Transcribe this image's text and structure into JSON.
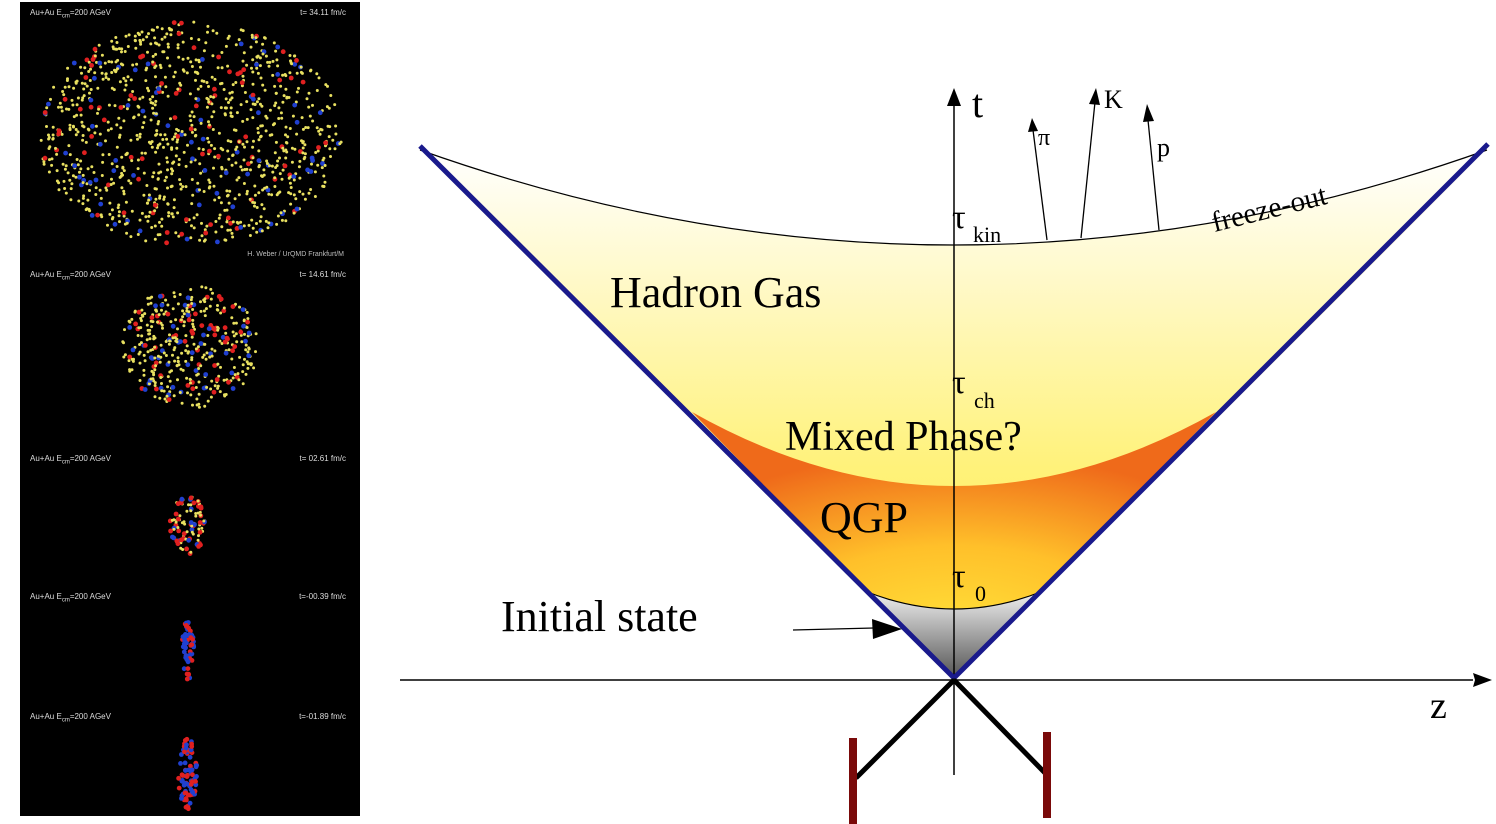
{
  "simulation": {
    "frames": [
      {
        "label": "Au+Au E",
        "sub": "cm",
        "label_rest": "=200 AGeV",
        "time": "t= 34.11 fm/c",
        "credit": "H. Weber / UrQMD Frankfurt/M"
      },
      {
        "label": "Au+Au E",
        "sub": "cm",
        "label_rest": "=200 AGeV",
        "time": "t= 14.61 fm/c",
        "credit": ""
      },
      {
        "label": "Au+Au E",
        "sub": "cm",
        "label_rest": "=200 AGeV",
        "time": "t= 02.61 fm/c",
        "credit": ""
      },
      {
        "label": "Au+Au E",
        "sub": "cm",
        "label_rest": "=200 AGeV",
        "time": "t=-00.39 fm/c",
        "credit": ""
      },
      {
        "label": "Au+Au E",
        "sub": "cm",
        "label_rest": "=200 AGeV",
        "time": "t=-01.89 fm/c",
        "credit": ""
      }
    ],
    "colors": {
      "background": "#000000",
      "hadrons": "#e8e060",
      "protons": "#e02020",
      "neutrons": "#2040d0"
    }
  },
  "diagram": {
    "axis_t": "t",
    "axis_z": "z",
    "regions": {
      "hadron_gas": "Hadron Gas",
      "mixed_phase": "Mixed Phase?",
      "qgp": "QGP",
      "initial_state": "Initial state",
      "freeze_out": "freeze-out"
    },
    "times": {
      "tau": "τ",
      "kin": "kin",
      "ch": "ch",
      "zero": "0"
    },
    "particles": [
      "π",
      "K",
      "p"
    ],
    "colors": {
      "light_cone": "#1a1a8c",
      "nuclei": "#7a0a0a",
      "hadron_gas_fill": "#fff38a",
      "qgp_fill": "#f0851f",
      "initial_fill": "#9a9a9a"
    }
  }
}
